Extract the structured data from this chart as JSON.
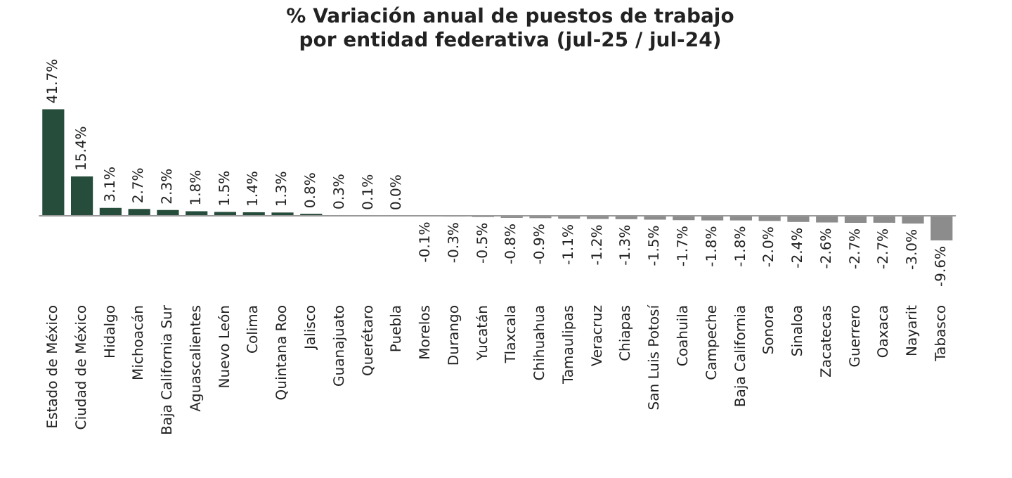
{
  "chart_data": {
    "type": "bar",
    "title": "% Variación anual de puestos de trabajo\npor entidad federativa (jul-25 / jul-24)",
    "categories": [
      "Estado de México",
      "Ciudad de México",
      "Hidalgo",
      "Michoacán",
      "Baja California Sur",
      "Aguascalientes",
      "Nuevo León",
      "Colima",
      "Quintana Roo",
      "Jalisco",
      "Guanajuato",
      "Querétaro",
      "Puebla",
      "Morelos",
      "Durango",
      "Yucatán",
      "Tlaxcala",
      "Chihuahua",
      "Tamaulipas",
      "Veracruz",
      "Chiapas",
      "San Luis Potosí",
      "Coahuila",
      "Campeche",
      "Baja California",
      "Sonora",
      "Sinaloa",
      "Zacatecas",
      "Guerrero",
      "Oaxaca",
      "Nayarit",
      "Tabasco"
    ],
    "values": [
      41.7,
      15.4,
      3.1,
      2.7,
      2.3,
      1.8,
      1.5,
      1.4,
      1.3,
      0.8,
      0.3,
      0.1,
      0.0,
      -0.1,
      -0.3,
      -0.5,
      -0.8,
      -0.9,
      -1.1,
      -1.2,
      -1.3,
      -1.5,
      -1.7,
      -1.8,
      -1.8,
      -2.0,
      -2.4,
      -2.6,
      -2.7,
      -2.7,
      -3.0,
      -9.6
    ],
    "value_labels": [
      "41.7%",
      "15.4%",
      "3.1%",
      "2.7%",
      "2.3%",
      "1.8%",
      "1.5%",
      "1.4%",
      "1.3%",
      "0.8%",
      "0.3%",
      "0.1%",
      "0.0%",
      "-0.1%",
      "-0.3%",
      "-0.5%",
      "-0.8%",
      "-0.9%",
      "-1.1%",
      "-1.2%",
      "-1.3%",
      "-1.5%",
      "-1.7%",
      "-1.8%",
      "-1.8%",
      "-2.0%",
      "-2.4%",
      "-2.6%",
      "-2.7%",
      "-2.7%",
      "-3.0%",
      "-9.6%"
    ],
    "colors": [
      "#264d3b",
      "#264d3b",
      "#264d3b",
      "#264d3b",
      "#264d3b",
      "#264d3b",
      "#264d3b",
      "#264d3b",
      "#264d3b",
      "#264d3b",
      "#264d3b",
      "#264d3b",
      "#264d3b",
      "#8c8c8c",
      "#8c8c8c",
      "#8c8c8c",
      "#8c8c8c",
      "#8c8c8c",
      "#8c8c8c",
      "#8c8c8c",
      "#8c8c8c",
      "#8c8c8c",
      "#8c8c8c",
      "#8c8c8c",
      "#8c8c8c",
      "#8c8c8c",
      "#8c8c8c",
      "#8c8c8c",
      "#8c8c8c",
      "#8c8c8c",
      "#8c8c8c",
      "#8c8c8c"
    ],
    "grid": false,
    "legend": false
  }
}
